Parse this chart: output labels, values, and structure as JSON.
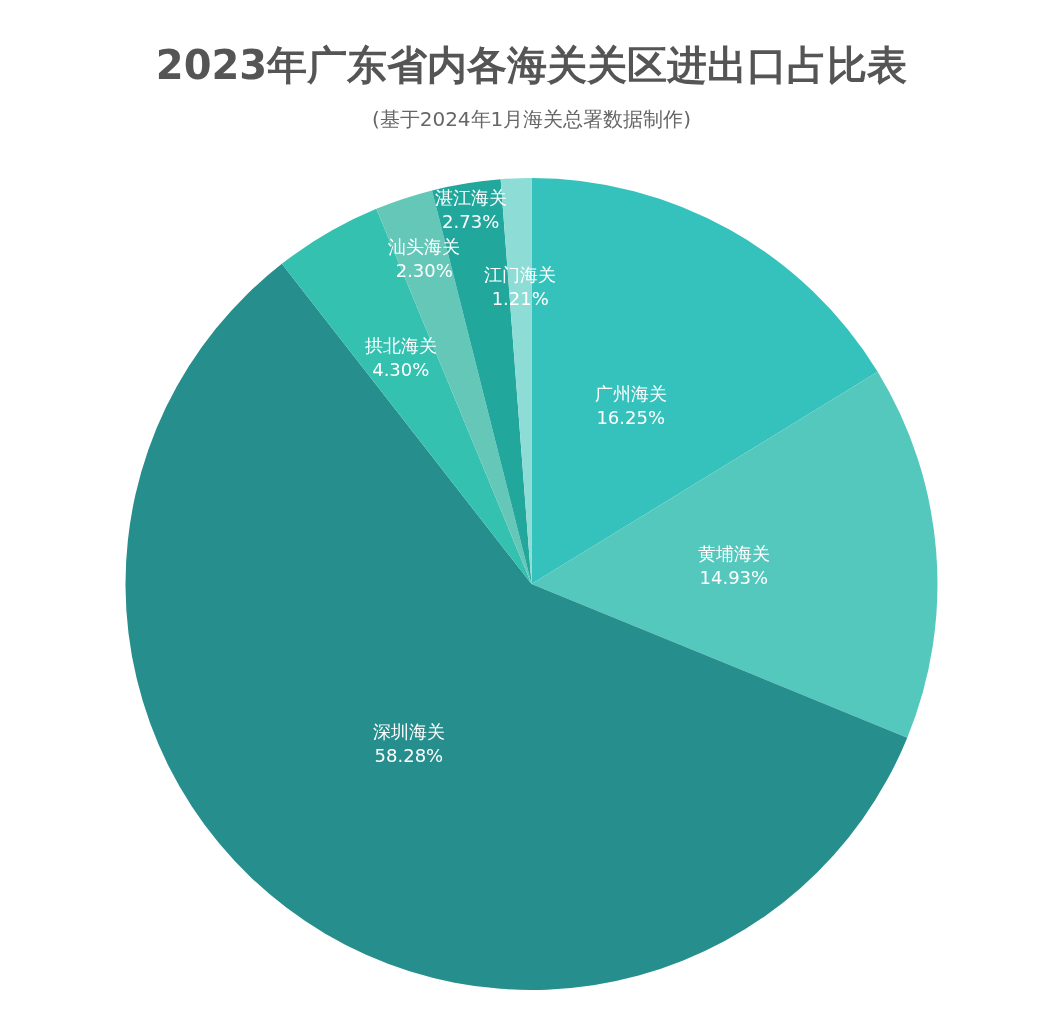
{
  "chart_data": {
    "type": "pie",
    "title": "2023年广东省内各海关关区进出口占比表",
    "subtitle": "(基于2024年1月海关总署数据制作)",
    "categories": [
      "广州海关",
      "黄埔海关",
      "深圳海关",
      "拱北海关",
      "汕头海关",
      "湛江海关",
      "江门海关"
    ],
    "values": [
      16.25,
      14.93,
      58.28,
      4.3,
      2.3,
      2.73,
      1.21
    ],
    "value_labels": [
      "16.25%",
      "14.93%",
      "58.28%",
      "4.30%",
      "2.30%",
      "2.73%",
      "1.21%"
    ],
    "colors": [
      "#36c2bc",
      "#55c8bd",
      "#268e8c",
      "#34c1b0",
      "#64c7b8",
      "#22a79c",
      "#8ddcd6"
    ],
    "legend": false
  }
}
